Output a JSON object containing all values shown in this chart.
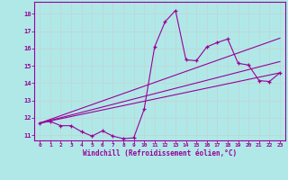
{
  "background_color": "#b0e8e8",
  "grid_color": "#c0d8d8",
  "line_color": "#990099",
  "marker_color": "#990099",
  "xlabel": "Windchill (Refroidissement éolien,°C)",
  "xlim": [
    -0.5,
    23.5
  ],
  "ylim": [
    10.7,
    18.7
  ],
  "yticks": [
    11,
    12,
    13,
    14,
    15,
    16,
    17,
    18
  ],
  "xticks": [
    0,
    1,
    2,
    3,
    4,
    5,
    6,
    7,
    8,
    9,
    10,
    11,
    12,
    13,
    14,
    15,
    16,
    17,
    18,
    19,
    20,
    21,
    22,
    23
  ],
  "line1_x": [
    0,
    1,
    2,
    3,
    4,
    5,
    6,
    7,
    8,
    9,
    10,
    11,
    12,
    13,
    14,
    15,
    16,
    17,
    18,
    19,
    20,
    21,
    22,
    23
  ],
  "line1_y": [
    11.7,
    11.8,
    11.55,
    11.55,
    11.2,
    10.95,
    11.25,
    10.95,
    10.8,
    10.85,
    12.5,
    16.1,
    17.55,
    18.2,
    15.35,
    15.3,
    16.1,
    16.35,
    16.55,
    15.15,
    15.05,
    14.15,
    14.1,
    14.6
  ],
  "line2_x": [
    0,
    23
  ],
  "line2_y": [
    11.7,
    14.6
  ],
  "line3_x": [
    0,
    23
  ],
  "line3_y": [
    11.7,
    16.6
  ],
  "line4_x": [
    0,
    23
  ],
  "line4_y": [
    11.7,
    15.25
  ]
}
